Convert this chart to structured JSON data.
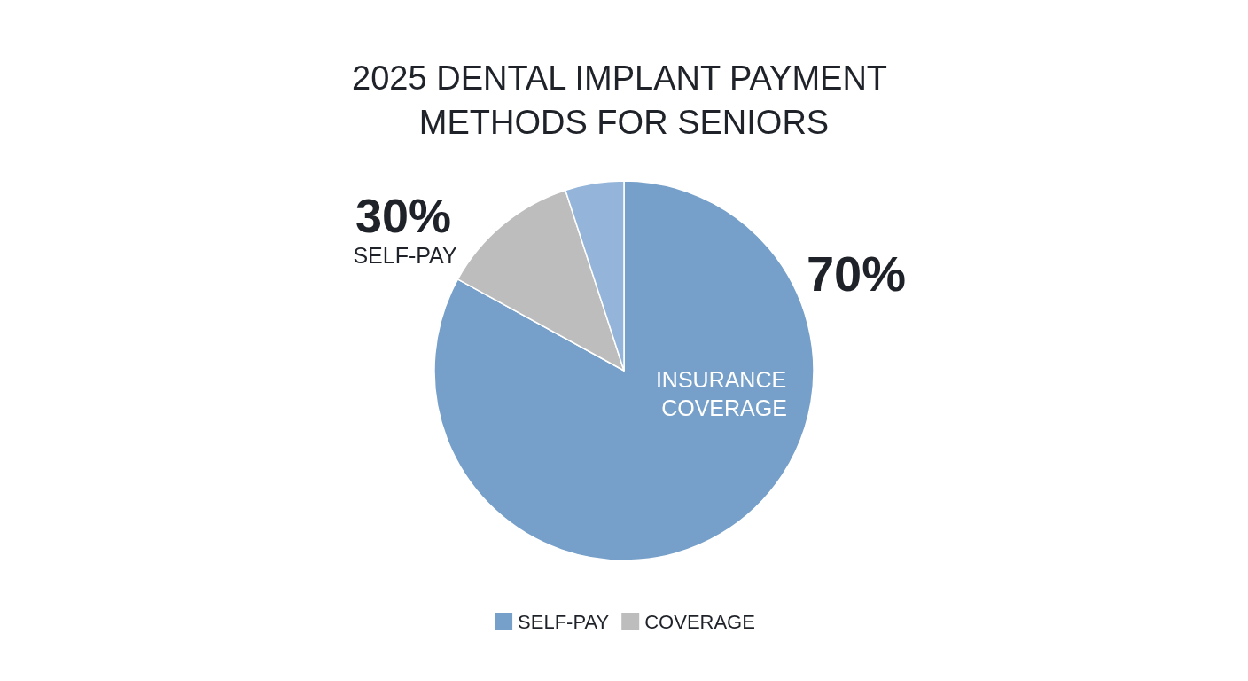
{
  "chart_data": {
    "type": "pie",
    "title": "2025 DENTAL IMPLANT PAYMENT METHODS FOR SENIORS",
    "categories": [
      "SELF-PAY",
      "COVERAGE",
      null
    ],
    "values": [
      83,
      12,
      5
    ],
    "colors": [
      "#76a0c9",
      "#bdbdbd",
      "#94b5d9"
    ],
    "legend": "bottom",
    "annotations": [
      "30%",
      "SELF-PAY",
      "70%",
      "INSURANCE COVERAGE"
    ]
  }
}
